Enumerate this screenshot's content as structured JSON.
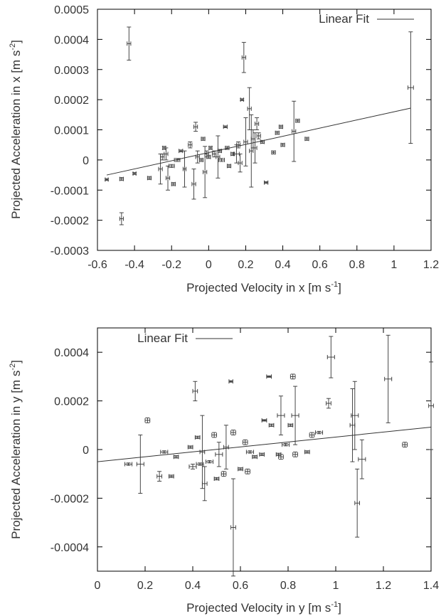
{
  "chart_data": [
    {
      "type": "scatter",
      "xlabel": "Projected Velocity in x [m s",
      "xlabel_sup": "-1",
      "xlabel_tail": "]",
      "ylabel": "Projected Acceleration in x [m s",
      "ylabel_sup": "-2",
      "ylabel_tail": "]",
      "xlim": [
        -0.6,
        1.2
      ],
      "ylim": [
        -0.0003,
        0.0005
      ],
      "xticks": [
        -0.6,
        -0.4,
        -0.2,
        0,
        0.2,
        0.4,
        0.6,
        0.8,
        1,
        1.2
      ],
      "xtick_labels": [
        "-0.6",
        "-0.4",
        "-0.2",
        "0",
        "0.2",
        "0.4",
        "0.6",
        "0.8",
        "1",
        "1.2"
      ],
      "yticks": [
        -0.0003,
        -0.0002,
        -0.0001,
        0,
        0.0001,
        0.0002,
        0.0003,
        0.0004,
        0.0005
      ],
      "ytick_labels": [
        "-0.0003",
        "-0.0002",
        "-0.0001",
        "0",
        "0.0001",
        "0.0002",
        "0.0003",
        "0.0004",
        "0.0005"
      ],
      "grid": false,
      "legend": {
        "position": "top-right",
        "entries": [
          "Linear Fit"
        ]
      },
      "fit": {
        "name": "Linear Fit",
        "x": [
          -0.55,
          1.09
        ],
        "y": [
          -5e-05,
          0.000172
        ]
      },
      "points": [
        {
          "x": -0.55,
          "y": -6.5e-05,
          "xe": 0.008,
          "ye": 3e-06
        },
        {
          "x": -0.47,
          "y": -6.3e-05,
          "xe": 0.01,
          "ye": 5e-06
        },
        {
          "x": -0.47,
          "y": -0.000195,
          "xe": 0.01,
          "ye": 2e-05
        },
        {
          "x": -0.43,
          "y": 0.000386,
          "xe": 0.01,
          "ye": 5.5e-05
        },
        {
          "x": -0.4,
          "y": -4.5e-05,
          "xe": 0.008,
          "ye": 3e-06
        },
        {
          "x": -0.32,
          "y": -6e-05,
          "xe": 0.01,
          "ye": 5e-06
        },
        {
          "x": -0.26,
          "y": -3e-05,
          "xe": 0.01,
          "ye": 5e-05
        },
        {
          "x": -0.25,
          "y": 1e-05,
          "xe": 0.01,
          "ye": 1e-05
        },
        {
          "x": -0.24,
          "y": 4e-05,
          "xe": 0.008,
          "ye": 5e-06
        },
        {
          "x": -0.23,
          "y": 2e-05,
          "xe": 0.01,
          "ye": 2e-05
        },
        {
          "x": -0.22,
          "y": -6e-05,
          "xe": 0.01,
          "ye": 4e-05
        },
        {
          "x": -0.2,
          "y": -2e-05,
          "xe": 0.015,
          "ye": 5e-06
        },
        {
          "x": -0.19,
          "y": -8e-05,
          "xe": 0.01,
          "ye": 5e-06
        },
        {
          "x": -0.17,
          "y": 0.0,
          "xe": 0.015,
          "ye": 5e-06
        },
        {
          "x": -0.15,
          "y": 3e-05,
          "xe": 0.01,
          "ye": 3e-06
        },
        {
          "x": -0.13,
          "y": -3e-05,
          "xe": 0.008,
          "ye": 6e-05
        },
        {
          "x": -0.1,
          "y": 5e-05,
          "xe": 0.01,
          "ye": 1e-05
        },
        {
          "x": -0.08,
          "y": -8e-05,
          "xe": 0.01,
          "ye": 5e-05
        },
        {
          "x": -0.07,
          "y": 0.00011,
          "xe": 0.01,
          "ye": 1.5e-05
        },
        {
          "x": -0.06,
          "y": 1e-05,
          "xe": 0.01,
          "ye": 2e-05
        },
        {
          "x": -0.04,
          "y": 0.0,
          "xe": 0.01,
          "ye": 5e-06
        },
        {
          "x": -0.03,
          "y": 7e-05,
          "xe": 0.01,
          "ye": 5e-06
        },
        {
          "x": -0.02,
          "y": -4e-05,
          "xe": 0.01,
          "ye": 8.5e-05
        },
        {
          "x": -0.01,
          "y": 2e-05,
          "xe": 0.01,
          "ye": 1e-05
        },
        {
          "x": 0.0,
          "y": 1e-05,
          "xe": 0.01,
          "ye": 5e-06
        },
        {
          "x": 0.01,
          "y": 4e-05,
          "xe": 0.008,
          "ye": 5e-06
        },
        {
          "x": 0.03,
          "y": 2e-05,
          "xe": 0.01,
          "ye": 1e-05
        },
        {
          "x": 0.05,
          "y": 1e-05,
          "xe": 0.01,
          "ye": 7e-05
        },
        {
          "x": 0.06,
          "y": 3e-05,
          "xe": 0.01,
          "ye": 5e-06
        },
        {
          "x": 0.07,
          "y": 0.0,
          "xe": 0.015,
          "ye": 5e-06
        },
        {
          "x": 0.09,
          "y": 0.00011,
          "xe": 0.01,
          "ye": 3e-06
        },
        {
          "x": 0.1,
          "y": 4e-05,
          "xe": 0.01,
          "ye": 5e-06
        },
        {
          "x": 0.11,
          "y": -2e-05,
          "xe": 0.01,
          "ye": 5e-06
        },
        {
          "x": 0.13,
          "y": 2e-05,
          "xe": 0.01,
          "ye": 5e-06
        },
        {
          "x": 0.15,
          "y": 2e-05,
          "xe": 0.015,
          "ye": 3e-05
        },
        {
          "x": 0.16,
          "y": 5e-05,
          "xe": 0.01,
          "ye": 1e-05
        },
        {
          "x": 0.17,
          "y": -1e-05,
          "xe": 0.01,
          "ye": 3e-05
        },
        {
          "x": 0.18,
          "y": 0.0002,
          "xe": 0.008,
          "ye": 3e-06
        },
        {
          "x": 0.19,
          "y": 0.00034,
          "xe": 0.01,
          "ye": 5e-05
        },
        {
          "x": 0.2,
          "y": 6e-05,
          "xe": 0.01,
          "ye": 8e-05
        },
        {
          "x": 0.22,
          "y": 0.00017,
          "xe": 0.01,
          "ye": 7e-05
        },
        {
          "x": 0.23,
          "y": 3e-05,
          "xe": 0.01,
          "ye": 0.00012
        },
        {
          "x": 0.24,
          "y": 7e-05,
          "xe": 0.01,
          "ye": 3e-05
        },
        {
          "x": 0.25,
          "y": 4e-05,
          "xe": 0.01,
          "ye": 5e-05
        },
        {
          "x": 0.26,
          "y": 0.00012,
          "xe": 0.01,
          "ye": 2e-05
        },
        {
          "x": 0.27,
          "y": 8e-05,
          "xe": 0.01,
          "ye": 1e-05
        },
        {
          "x": 0.29,
          "y": 6e-05,
          "xe": 0.01,
          "ye": 5e-06
        },
        {
          "x": 0.31,
          "y": -7.5e-05,
          "xe": 0.01,
          "ye": 3e-06
        },
        {
          "x": 0.35,
          "y": 2.5e-05,
          "xe": 0.01,
          "ye": 5e-06
        },
        {
          "x": 0.37,
          "y": 9e-05,
          "xe": 0.01,
          "ye": 5e-06
        },
        {
          "x": 0.39,
          "y": 0.00011,
          "xe": 0.01,
          "ye": 5e-06
        },
        {
          "x": 0.4,
          "y": 5e-05,
          "xe": 0.01,
          "ye": 5e-06
        },
        {
          "x": 0.46,
          "y": 9.5e-05,
          "xe": 0.01,
          "ye": 0.0001
        },
        {
          "x": 0.48,
          "y": 0.00013,
          "xe": 0.01,
          "ye": 5e-06
        },
        {
          "x": 0.53,
          "y": 7e-05,
          "xe": 0.01,
          "ye": 5e-06
        },
        {
          "x": 1.09,
          "y": 0.00024,
          "xe": 0.015,
          "ye": 0.000185
        }
      ]
    },
    {
      "type": "scatter",
      "xlabel": "Projected Velocity in y [m s",
      "xlabel_sup": "-1",
      "xlabel_tail": "]",
      "ylabel": "Projected Acceleration in y [m s",
      "ylabel_sup": "-2",
      "ylabel_tail": "]",
      "xlim": [
        0,
        1.4
      ],
      "ylim": [
        -0.0005,
        0.0005
      ],
      "xticks": [
        0,
        0.2,
        0.4,
        0.6,
        0.8,
        1,
        1.2,
        1.4
      ],
      "xtick_labels": [
        "0",
        "0.2",
        "0.4",
        "0.6",
        "0.8",
        "1",
        "1.2",
        "1.4"
      ],
      "yticks": [
        -0.0004,
        -0.0002,
        0,
        0.0002,
        0.0004
      ],
      "ytick_labels": [
        "-0.0004",
        "-0.0002",
        "0",
        "0.0002",
        "0.0004"
      ],
      "grid": false,
      "legend": {
        "position": "top-left",
        "entries": [
          "Linear Fit"
        ]
      },
      "fit": {
        "name": "Linear Fit",
        "x": [
          0,
          1.4
        ],
        "y": [
          -5e-05,
          9.2e-05
        ]
      },
      "points": [
        {
          "x": 0.13,
          "y": -6e-05,
          "xe": 0.015,
          "ye": 5e-06
        },
        {
          "x": 0.18,
          "y": -6e-05,
          "xe": 0.015,
          "ye": 0.00012
        },
        {
          "x": 0.21,
          "y": 0.00012,
          "xe": 0.01,
          "ye": 1e-05
        },
        {
          "x": 0.26,
          "y": -0.00011,
          "xe": 0.01,
          "ye": 2e-05
        },
        {
          "x": 0.28,
          "y": -1e-05,
          "xe": 0.015,
          "ye": 5e-06
        },
        {
          "x": 0.31,
          "y": -0.00011,
          "xe": 0.01,
          "ye": 5e-06
        },
        {
          "x": 0.33,
          "y": -3e-05,
          "xe": 0.01,
          "ye": 5e-06
        },
        {
          "x": 0.39,
          "y": 1e-05,
          "xe": 0.01,
          "ye": 5e-06
        },
        {
          "x": 0.4,
          "y": -7e-05,
          "xe": 0.015,
          "ye": 1e-05
        },
        {
          "x": 0.41,
          "y": 0.00024,
          "xe": 0.01,
          "ye": 4e-05
        },
        {
          "x": 0.42,
          "y": 5e-05,
          "xe": 0.01,
          "ye": 5e-06
        },
        {
          "x": 0.43,
          "y": -6e-05,
          "xe": 0.015,
          "ye": 5e-06
        },
        {
          "x": 0.44,
          "y": -1e-05,
          "xe": 0.01,
          "ye": 0.00015
        },
        {
          "x": 0.45,
          "y": -0.00014,
          "xe": 0.01,
          "ye": 7e-05
        },
        {
          "x": 0.47,
          "y": -5e-05,
          "xe": 0.015,
          "ye": 5e-06
        },
        {
          "x": 0.49,
          "y": 6e-05,
          "xe": 0.01,
          "ye": 1e-05
        },
        {
          "x": 0.5,
          "y": -0.00012,
          "xe": 0.01,
          "ye": 5e-06
        },
        {
          "x": 0.51,
          "y": -2e-05,
          "xe": 0.015,
          "ye": 5e-05
        },
        {
          "x": 0.53,
          "y": -0.0001,
          "xe": 0.01,
          "ye": 1e-05
        },
        {
          "x": 0.54,
          "y": 1e-05,
          "xe": 0.01,
          "ye": 9e-05
        },
        {
          "x": 0.56,
          "y": 0.00028,
          "xe": 0.008,
          "ye": 3e-06
        },
        {
          "x": 0.57,
          "y": -0.00032,
          "xe": 0.01,
          "ye": 0.0002
        },
        {
          "x": 0.57,
          "y": 7e-05,
          "xe": 0.01,
          "ye": 1e-05
        },
        {
          "x": 0.6,
          "y": -8e-05,
          "xe": 0.01,
          "ye": 5e-06
        },
        {
          "x": 0.62,
          "y": 3e-05,
          "xe": 0.01,
          "ye": 1e-05
        },
        {
          "x": 0.63,
          "y": -9e-05,
          "xe": 0.01,
          "ye": 1e-05
        },
        {
          "x": 0.64,
          "y": -1e-05,
          "xe": 0.015,
          "ye": 5e-06
        },
        {
          "x": 0.66,
          "y": -3e-05,
          "xe": 0.01,
          "ye": 5e-06
        },
        {
          "x": 0.69,
          "y": -2e-05,
          "xe": 0.01,
          "ye": 5e-06
        },
        {
          "x": 0.7,
          "y": 0.00012,
          "xe": 0.01,
          "ye": 3e-06
        },
        {
          "x": 0.72,
          "y": 0.0003,
          "xe": 0.01,
          "ye": 3e-06
        },
        {
          "x": 0.73,
          "y": 0.0001,
          "xe": 0.01,
          "ye": 5e-06
        },
        {
          "x": 0.76,
          "y": -2e-05,
          "xe": 0.01,
          "ye": 5e-06
        },
        {
          "x": 0.77,
          "y": 0.00014,
          "xe": 0.015,
          "ye": 8e-05
        },
        {
          "x": 0.77,
          "y": -3e-05,
          "xe": 0.01,
          "ye": 1e-05
        },
        {
          "x": 0.79,
          "y": 2e-05,
          "xe": 0.015,
          "ye": 5e-06
        },
        {
          "x": 0.81,
          "y": 0.0001,
          "xe": 0.01,
          "ye": 5e-06
        },
        {
          "x": 0.82,
          "y": 0.0003,
          "xe": 0.01,
          "ye": 1e-05
        },
        {
          "x": 0.83,
          "y": 0.00014,
          "xe": 0.015,
          "ye": 0.00012
        },
        {
          "x": 0.83,
          "y": -2e-05,
          "xe": 0.01,
          "ye": 1e-05
        },
        {
          "x": 0.88,
          "y": -1e-05,
          "xe": 0.01,
          "ye": 5e-06
        },
        {
          "x": 0.9,
          "y": 6e-05,
          "xe": 0.01,
          "ye": 1e-05
        },
        {
          "x": 0.93,
          "y": 7e-05,
          "xe": 0.015,
          "ye": 5e-06
        },
        {
          "x": 0.97,
          "y": 0.00019,
          "xe": 0.01,
          "ye": 2e-05
        },
        {
          "x": 0.98,
          "y": 0.00038,
          "xe": 0.015,
          "ye": 8.5e-05
        },
        {
          "x": 1.07,
          "y": 0.0001,
          "xe": 0.01,
          "ye": 0.00015
        },
        {
          "x": 1.08,
          "y": 0.00014,
          "xe": 0.015,
          "ye": 0.00014
        },
        {
          "x": 1.09,
          "y": -0.00022,
          "xe": 0.01,
          "ye": 0.00014
        },
        {
          "x": 1.11,
          "y": -4e-05,
          "xe": 0.015,
          "ye": 8e-05
        },
        {
          "x": 1.22,
          "y": 0.00029,
          "xe": 0.015,
          "ye": 0.00018
        },
        {
          "x": 1.29,
          "y": 2e-05,
          "xe": 0.01,
          "ye": 1e-05
        },
        {
          "x": 1.4,
          "y": 0.00018,
          "xe": 0.01,
          "ye": 0.00018
        }
      ]
    }
  ]
}
